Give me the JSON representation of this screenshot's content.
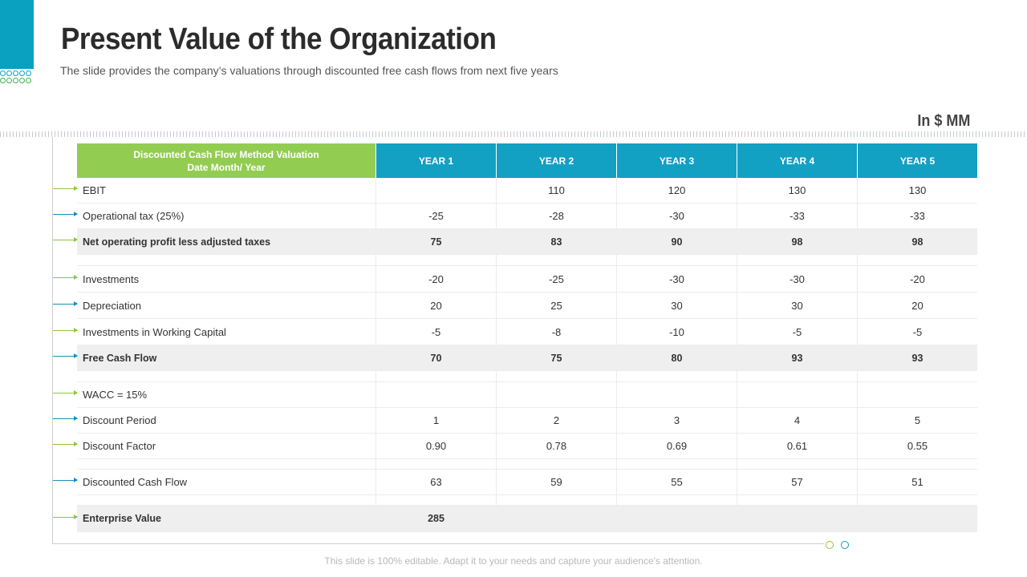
{
  "slide": {
    "title": "Present Value of the Organization",
    "subtitle": "The slide provides the company’s valuations through discounted free cash flows from next five years",
    "unit": "In $ MM",
    "footer": "This slide is 100% editable. Adapt it to your needs and capture your audience's attention."
  },
  "table": {
    "header_line1": "Discounted Cash Flow Method Valuation",
    "header_line2": "Date Month/ Year",
    "years": [
      "YEAR 1",
      "YEAR 2",
      "YEAR 3",
      "YEAR 4",
      "YEAR 5"
    ],
    "rows": [
      {
        "label": "EBIT",
        "values": [
          "",
          "110",
          "120",
          "130",
          "130"
        ]
      },
      {
        "label": "Operational tax (25%)",
        "values": [
          "-25",
          "-28",
          "-30",
          "-33",
          "-33"
        ]
      },
      {
        "label": "Net operating profit less adjusted taxes",
        "values": [
          "75",
          "83",
          "90",
          "98",
          "98"
        ]
      },
      {
        "label": "Investments",
        "values": [
          "-20",
          "-25",
          "-30",
          "-30",
          "-20"
        ]
      },
      {
        "label": "Depreciation",
        "values": [
          "20",
          "25",
          "30",
          "30",
          "20"
        ]
      },
      {
        "label": "Investments in Working Capital",
        "values": [
          "-5",
          "-8",
          "-10",
          "-5",
          "-5"
        ]
      },
      {
        "label": "Free Cash Flow",
        "values": [
          "70",
          "75",
          "80",
          "93",
          "93"
        ]
      },
      {
        "label": "WACC = 15%",
        "values": [
          "",
          "",
          "",
          "",
          ""
        ]
      },
      {
        "label": "Discount Period",
        "values": [
          "1",
          "2",
          "3",
          "4",
          "5"
        ]
      },
      {
        "label": "Discount Factor",
        "values": [
          "0.90",
          "0.78",
          "0.69",
          "0.61",
          "0.55"
        ]
      },
      {
        "label": "Discounted Cash Flow",
        "values": [
          "63",
          "59",
          "55",
          "57",
          "51"
        ]
      },
      {
        "label": "Enterprise Value",
        "values": [
          "285",
          "",
          "",
          "",
          ""
        ]
      }
    ]
  },
  "colors": {
    "accent_teal": "#12a0c3",
    "accent_green": "#92cd52",
    "highlight_row": "#efefef"
  }
}
